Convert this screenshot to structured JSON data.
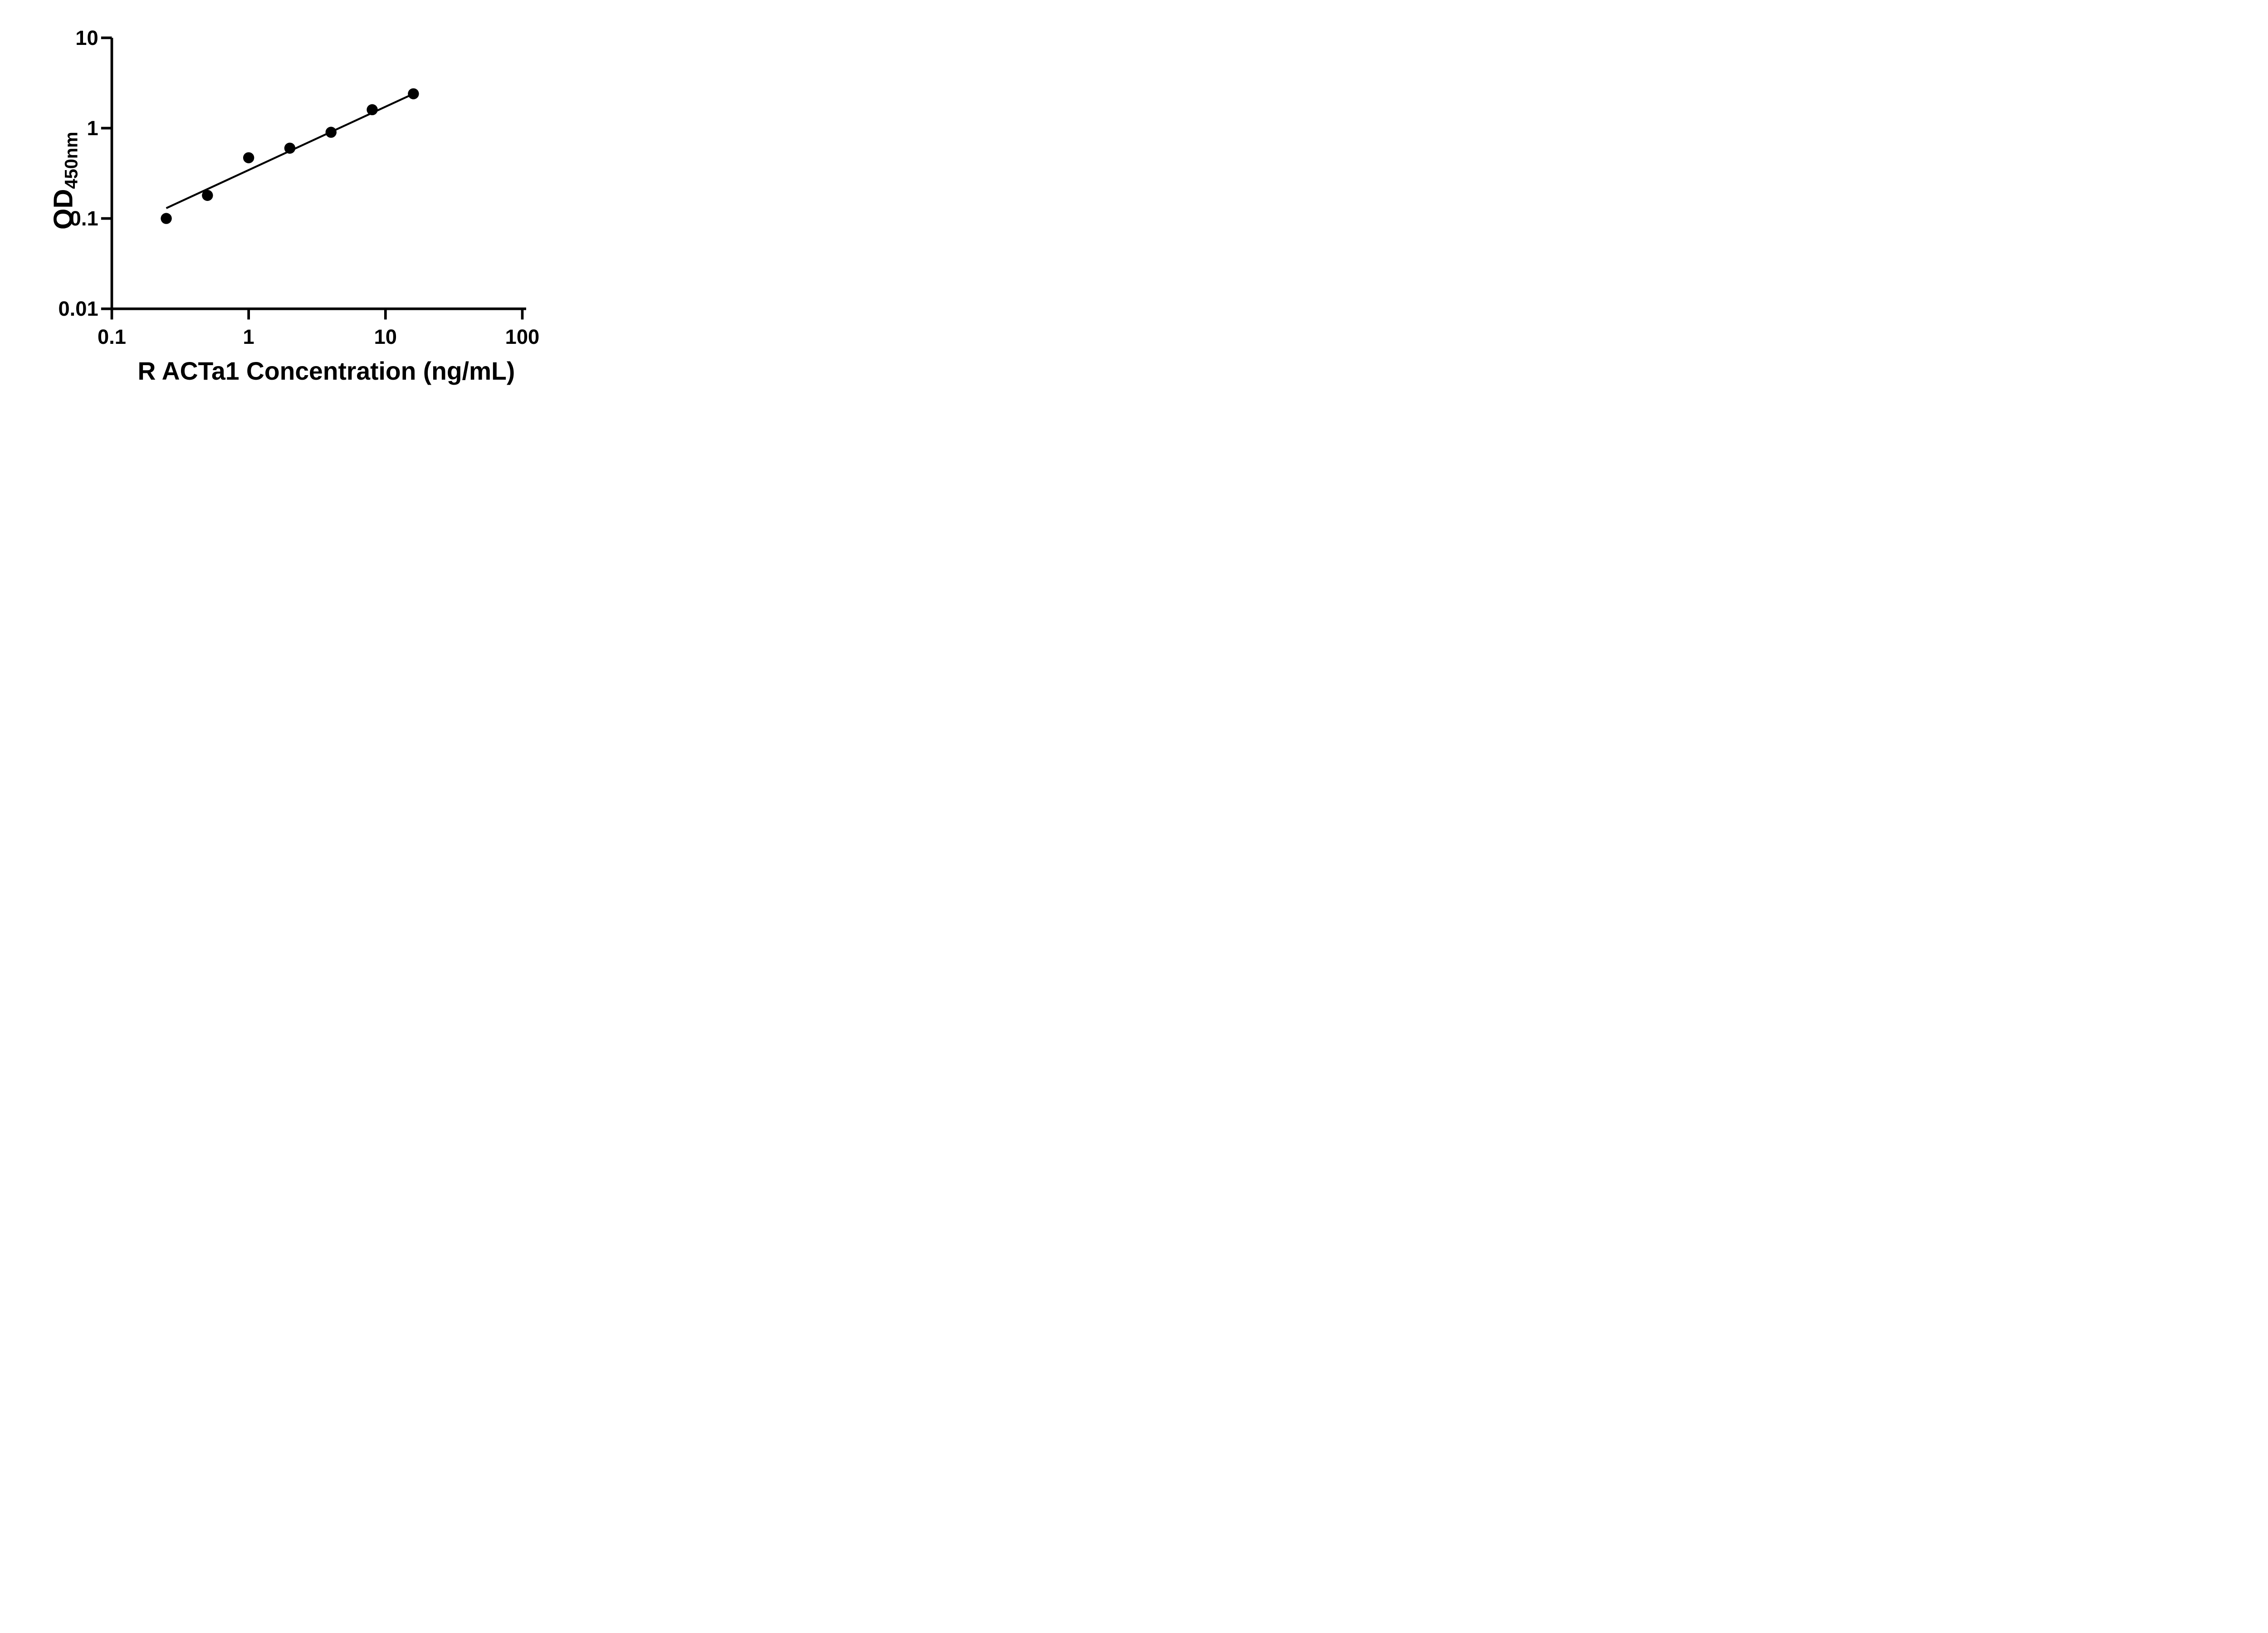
{
  "figure": {
    "background_color": "#ffffff",
    "ink_color": "#000000",
    "description": "ELISA standard curve scatter plot with log-log axes and linear trend line"
  },
  "chart_data": {
    "type": "scatter",
    "title": "",
    "xlabel": "R ACTa1 Concentration (ng/mL)",
    "ylabel_main": "OD",
    "ylabel_sub": "450nm",
    "x_scale": "log",
    "y_scale": "log",
    "xlim": [
      0.1,
      100
    ],
    "ylim": [
      0.01,
      10
    ],
    "x_ticks": [
      0.1,
      1,
      10,
      100
    ],
    "x_tick_labels": [
      "0.1",
      "1",
      "10",
      "100"
    ],
    "y_ticks": [
      10,
      1,
      0.1,
      0.01
    ],
    "y_tick_labels": [
      "10",
      "1",
      "0.1",
      "0.01"
    ],
    "grid": false,
    "legend_position": "none",
    "series": [
      {
        "name": "standard-curve-points",
        "marker": "filled-circle",
        "color": "#000000",
        "x": [
          0.25,
          0.5,
          1,
          2,
          4,
          8,
          16
        ],
        "y": [
          0.1,
          0.18,
          0.47,
          0.6,
          0.9,
          1.6,
          2.4
        ]
      }
    ],
    "trend_line": {
      "x_start": 0.25,
      "y_start": 0.13,
      "x_end": 16,
      "y_end": 2.4,
      "color": "#000000"
    }
  }
}
